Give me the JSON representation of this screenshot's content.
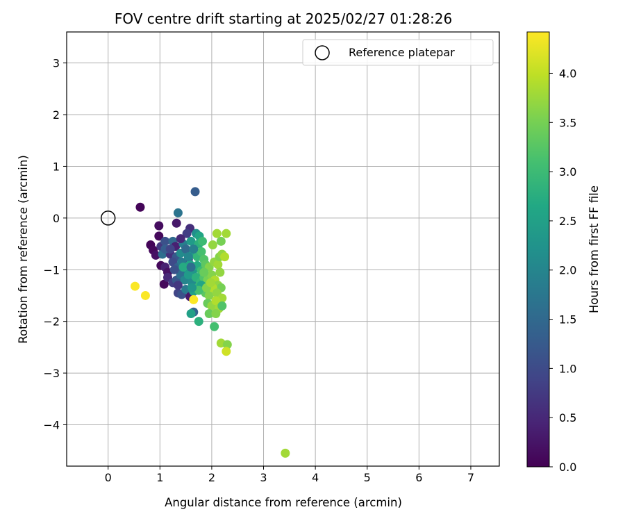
{
  "chart_data": {
    "type": "scatter",
    "title": "FOV centre drift starting at 2025/02/27 01:28:26",
    "xlabel": "Angular distance from reference (arcmin)",
    "ylabel": "Rotation from reference (arcmin)",
    "xlim": [
      -0.8,
      7.55
    ],
    "ylim": [
      -4.8,
      3.6
    ],
    "xticks": [
      0,
      1,
      2,
      3,
      4,
      5,
      6,
      7
    ],
    "yticks": [
      3,
      2,
      1,
      0,
      -1,
      -2,
      -3,
      -4
    ],
    "xtick_labels": [
      "0",
      "1",
      "2",
      "3",
      "4",
      "5",
      "6",
      "7"
    ],
    "ytick_labels": [
      "3",
      "2",
      "1",
      "0",
      "−1",
      "−2",
      "−3",
      "−4"
    ],
    "grid": true,
    "legend": {
      "position": "top-right",
      "entries": [
        {
          "label": "Reference platepar",
          "marker": "open-circle"
        }
      ]
    },
    "reference_point": {
      "x": 0,
      "y": 0
    },
    "colorbar": {
      "label": "Hours from first FF file",
      "colormap": "viridis",
      "range": [
        0,
        4.42
      ],
      "ticks": [
        0.0,
        0.5,
        1.0,
        1.5,
        2.0,
        2.5,
        3.0,
        3.5,
        4.0
      ],
      "tick_labels": [
        "0.0",
        "0.5",
        "1.0",
        "1.5",
        "2.0",
        "2.5",
        "3.0",
        "3.5",
        "4.0"
      ]
    },
    "points": [
      {
        "x": 0.62,
        "y": 0.21,
        "c": 0.05
      },
      {
        "x": 1.68,
        "y": 0.51,
        "c": 1.3
      },
      {
        "x": 1.35,
        "y": 0.1,
        "c": 1.7
      },
      {
        "x": 0.98,
        "y": -0.15,
        "c": 0.15
      },
      {
        "x": 1.32,
        "y": -0.1,
        "c": 0.3
      },
      {
        "x": 1.58,
        "y": -0.2,
        "c": 0.6
      },
      {
        "x": 0.98,
        "y": -0.35,
        "c": 0.1
      },
      {
        "x": 1.52,
        "y": -0.3,
        "c": 0.8
      },
      {
        "x": 1.7,
        "y": -0.3,
        "c": 2.2
      },
      {
        "x": 1.76,
        "y": -0.35,
        "c": 2.6
      },
      {
        "x": 0.82,
        "y": -0.52,
        "c": 0.05
      },
      {
        "x": 0.87,
        "y": -0.62,
        "c": 0.1
      },
      {
        "x": 1.02,
        "y": -0.55,
        "c": 0.7
      },
      {
        "x": 1.1,
        "y": -0.45,
        "c": 1.1
      },
      {
        "x": 1.25,
        "y": -0.45,
        "c": 1.5
      },
      {
        "x": 1.3,
        "y": -0.55,
        "c": 0.4
      },
      {
        "x": 1.45,
        "y": -0.5,
        "c": 1.9
      },
      {
        "x": 1.6,
        "y": -0.45,
        "c": 2.4
      },
      {
        "x": 1.75,
        "y": -0.5,
        "c": 2.8
      },
      {
        "x": 1.82,
        "y": -0.45,
        "c": 3.0
      },
      {
        "x": 0.92,
        "y": -0.72,
        "c": 0.2
      },
      {
        "x": 1.05,
        "y": -0.7,
        "c": 1.6
      },
      {
        "x": 1.2,
        "y": -0.7,
        "c": 0.6
      },
      {
        "x": 1.32,
        "y": -0.75,
        "c": 1.2
      },
      {
        "x": 1.4,
        "y": -0.68,
        "c": 2.1
      },
      {
        "x": 1.55,
        "y": -0.8,
        "c": 0.9
      },
      {
        "x": 1.62,
        "y": -0.7,
        "c": 2.5
      },
      {
        "x": 1.72,
        "y": -0.75,
        "c": 2.9
      },
      {
        "x": 1.8,
        "y": -0.65,
        "c": 3.1
      },
      {
        "x": 1.85,
        "y": -0.8,
        "c": 3.2
      },
      {
        "x": 1.02,
        "y": -0.92,
        "c": 0.1
      },
      {
        "x": 1.1,
        "y": -0.95,
        "c": 0.4
      },
      {
        "x": 1.15,
        "y": -1.05,
        "c": 0.2
      },
      {
        "x": 1.25,
        "y": -0.85,
        "c": 1.0
      },
      {
        "x": 1.35,
        "y": -0.95,
        "c": 1.4
      },
      {
        "x": 1.42,
        "y": -0.85,
        "c": 1.8
      },
      {
        "x": 1.5,
        "y": -1.0,
        "c": 2.2
      },
      {
        "x": 1.58,
        "y": -0.9,
        "c": 2.6
      },
      {
        "x": 1.65,
        "y": -1.0,
        "c": 2.3
      },
      {
        "x": 1.72,
        "y": -0.92,
        "c": 2.7
      },
      {
        "x": 1.8,
        "y": -1.02,
        "c": 3.0
      },
      {
        "x": 1.88,
        "y": -0.9,
        "c": 3.3
      },
      {
        "x": 1.95,
        "y": -0.95,
        "c": 3.6
      },
      {
        "x": 2.05,
        "y": -0.85,
        "c": 3.7
      },
      {
        "x": 2.12,
        "y": -0.9,
        "c": 3.8
      },
      {
        "x": 2.15,
        "y": -0.75,
        "c": 3.6
      },
      {
        "x": 2.2,
        "y": -0.7,
        "c": 3.7
      },
      {
        "x": 2.25,
        "y": -0.75,
        "c": 3.9
      },
      {
        "x": 2.02,
        "y": -0.52,
        "c": 3.7
      },
      {
        "x": 2.18,
        "y": -0.45,
        "c": 3.5
      },
      {
        "x": 2.1,
        "y": -0.3,
        "c": 3.8
      },
      {
        "x": 2.28,
        "y": -0.3,
        "c": 3.8
      },
      {
        "x": 1.08,
        "y": -1.28,
        "c": 0.1
      },
      {
        "x": 1.15,
        "y": -1.15,
        "c": 0.5
      },
      {
        "x": 1.25,
        "y": -1.25,
        "c": 0.8
      },
      {
        "x": 1.32,
        "y": -1.2,
        "c": 1.2
      },
      {
        "x": 1.4,
        "y": -1.1,
        "c": 1.6
      },
      {
        "x": 1.48,
        "y": -1.2,
        "c": 2.0
      },
      {
        "x": 1.55,
        "y": -1.1,
        "c": 2.4
      },
      {
        "x": 1.62,
        "y": -1.25,
        "c": 2.1
      },
      {
        "x": 1.7,
        "y": -1.15,
        "c": 2.8
      },
      {
        "x": 1.78,
        "y": -1.25,
        "c": 2.9
      },
      {
        "x": 1.85,
        "y": -1.15,
        "c": 3.2
      },
      {
        "x": 1.92,
        "y": -1.2,
        "c": 3.5
      },
      {
        "x": 2.0,
        "y": -1.1,
        "c": 3.6
      },
      {
        "x": 2.06,
        "y": -1.2,
        "c": 3.9
      },
      {
        "x": 2.12,
        "y": -1.3,
        "c": 3.7
      },
      {
        "x": 2.18,
        "y": -1.35,
        "c": 3.5
      },
      {
        "x": 1.35,
        "y": -1.45,
        "c": 0.9
      },
      {
        "x": 1.42,
        "y": -1.48,
        "c": 1.1
      },
      {
        "x": 1.5,
        "y": -1.38,
        "c": 1.8
      },
      {
        "x": 1.58,
        "y": -1.52,
        "c": 0.3
      },
      {
        "x": 1.65,
        "y": -1.42,
        "c": 2.5
      },
      {
        "x": 1.72,
        "y": -1.35,
        "c": 2.9
      },
      {
        "x": 1.8,
        "y": -1.3,
        "c": 2.6
      },
      {
        "x": 1.88,
        "y": -1.45,
        "c": 3.3
      },
      {
        "x": 1.95,
        "y": -1.5,
        "c": 3.6
      },
      {
        "x": 2.02,
        "y": -1.35,
        "c": 3.9
      },
      {
        "x": 2.1,
        "y": -1.45,
        "c": 3.7
      },
      {
        "x": 2.2,
        "y": -1.55,
        "c": 3.8
      },
      {
        "x": 1.92,
        "y": -1.65,
        "c": 3.4
      },
      {
        "x": 2.0,
        "y": -1.7,
        "c": 3.7
      },
      {
        "x": 2.08,
        "y": -1.6,
        "c": 3.9
      },
      {
        "x": 2.14,
        "y": -1.75,
        "c": 3.8
      },
      {
        "x": 2.2,
        "y": -1.7,
        "c": 3.2
      },
      {
        "x": 1.65,
        "y": -1.82,
        "c": 1.4
      },
      {
        "x": 1.6,
        "y": -1.85,
        "c": 2.5
      },
      {
        "x": 1.95,
        "y": -1.85,
        "c": 3.4
      },
      {
        "x": 2.08,
        "y": -1.85,
        "c": 3.6
      },
      {
        "x": 1.75,
        "y": -2.0,
        "c": 2.8
      },
      {
        "x": 2.05,
        "y": -2.1,
        "c": 3.1
      },
      {
        "x": 2.18,
        "y": -2.42,
        "c": 3.8
      },
      {
        "x": 2.3,
        "y": -2.45,
        "c": 3.6
      },
      {
        "x": 2.28,
        "y": -2.58,
        "c": 4.1
      },
      {
        "x": 3.42,
        "y": -4.55,
        "c": 3.8
      },
      {
        "x": 0.52,
        "y": -1.32,
        "c": 4.4
      },
      {
        "x": 0.72,
        "y": -1.5,
        "c": 4.4
      },
      {
        "x": 1.65,
        "y": -1.58,
        "c": 4.4
      },
      {
        "x": 1.1,
        "y": -0.6,
        "c": 1.3
      },
      {
        "x": 1.2,
        "y": -0.6,
        "c": 0.9
      },
      {
        "x": 1.4,
        "y": -0.4,
        "c": 0.5
      },
      {
        "x": 1.5,
        "y": -0.6,
        "c": 1.5
      },
      {
        "x": 1.65,
        "y": -0.6,
        "c": 1.9
      },
      {
        "x": 1.45,
        "y": -0.95,
        "c": 2.7
      },
      {
        "x": 1.35,
        "y": -1.3,
        "c": 0.7
      },
      {
        "x": 1.6,
        "y": -0.95,
        "c": 1.6
      },
      {
        "x": 1.75,
        "y": -1.4,
        "c": 3.1
      },
      {
        "x": 1.9,
        "y": -1.35,
        "c": 3.6
      },
      {
        "x": 1.98,
        "y": -1.25,
        "c": 3.8
      },
      {
        "x": 2.16,
        "y": -1.05,
        "c": 3.7
      },
      {
        "x": 1.28,
        "y": -1.0,
        "c": 1.1
      },
      {
        "x": 1.55,
        "y": -0.75,
        "c": 2.0
      },
      {
        "x": 1.62,
        "y": -1.35,
        "c": 2.3
      },
      {
        "x": 1.85,
        "y": -1.05,
        "c": 3.4
      }
    ]
  }
}
